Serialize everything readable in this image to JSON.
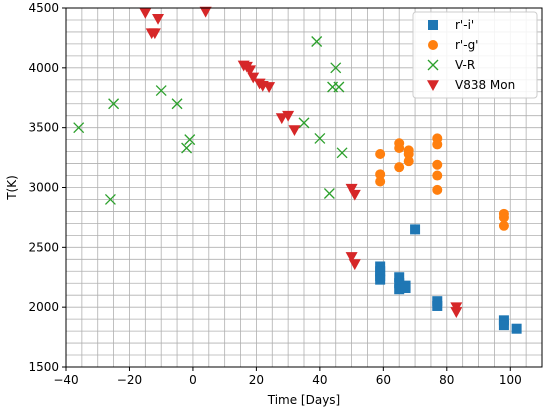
{
  "chart_data": {
    "type": "scatter",
    "xlabel": "Time [Days]",
    "ylabel": "T(K)",
    "xlim": [
      -40,
      110
    ],
    "ylim": [
      1500,
      4500
    ],
    "xticks": [
      -40,
      -20,
      0,
      20,
      40,
      60,
      80,
      100
    ],
    "yticks": [
      1500,
      2000,
      2500,
      3000,
      3500,
      4000,
      4500
    ],
    "grid": true,
    "grid_minor_x": 5,
    "grid_minor_y": 100,
    "legend_position": "top-right",
    "series": [
      {
        "name": "r'-i'",
        "marker": "square",
        "color": "#1f77b4",
        "points": [
          [
            59,
            2340
          ],
          [
            59,
            2300
          ],
          [
            59,
            2260
          ],
          [
            59,
            2230
          ],
          [
            65,
            2250
          ],
          [
            65,
            2200
          ],
          [
            65,
            2150
          ],
          [
            67,
            2180
          ],
          [
            67,
            2160
          ],
          [
            70,
            2650
          ],
          [
            77,
            2050
          ],
          [
            77,
            2010
          ],
          [
            98,
            1890
          ],
          [
            98,
            1850
          ],
          [
            102,
            1820
          ]
        ]
      },
      {
        "name": "r'-g'",
        "marker": "circle",
        "color": "#ff7f0e",
        "points": [
          [
            59,
            3280
          ],
          [
            59,
            3110
          ],
          [
            59,
            3050
          ],
          [
            65,
            3370
          ],
          [
            65,
            3330
          ],
          [
            65,
            3170
          ],
          [
            68,
            3310
          ],
          [
            68,
            3280
          ],
          [
            68,
            3220
          ],
          [
            77,
            3410
          ],
          [
            77,
            3360
          ],
          [
            77,
            3190
          ],
          [
            77,
            3100
          ],
          [
            77,
            2980
          ],
          [
            98,
            2780
          ],
          [
            98,
            2750
          ],
          [
            98,
            2680
          ]
        ]
      },
      {
        "name": "V-R",
        "marker": "x",
        "color": "#2ca02c",
        "points": [
          [
            -36,
            3500
          ],
          [
            -25,
            3700
          ],
          [
            -26,
            2900
          ],
          [
            -10,
            3810
          ],
          [
            -5,
            3700
          ],
          [
            -1,
            3400
          ],
          [
            -2,
            3330
          ],
          [
            35,
            3540
          ],
          [
            40,
            3410
          ],
          [
            39,
            4220
          ],
          [
            45,
            4000
          ],
          [
            44,
            3840
          ],
          [
            46,
            3840
          ],
          [
            47,
            3290
          ],
          [
            43,
            2950
          ]
        ]
      },
      {
        "name": "V838 Mon",
        "marker": "triangle-down",
        "color": "#d62728",
        "points": [
          [
            -15,
            4460
          ],
          [
            -11,
            4410
          ],
          [
            -13,
            4290
          ],
          [
            -12,
            4290
          ],
          [
            4,
            4470
          ],
          [
            16,
            4020
          ],
          [
            17,
            4010
          ],
          [
            18,
            3980
          ],
          [
            19,
            3920
          ],
          [
            21,
            3870
          ],
          [
            22,
            3850
          ],
          [
            24,
            3840
          ],
          [
            28,
            3580
          ],
          [
            30,
            3600
          ],
          [
            32,
            3480
          ],
          [
            50,
            2990
          ],
          [
            51,
            2940
          ],
          [
            50,
            2420
          ],
          [
            51,
            2360
          ],
          [
            83,
            2000
          ],
          [
            83,
            1960
          ]
        ]
      }
    ]
  }
}
